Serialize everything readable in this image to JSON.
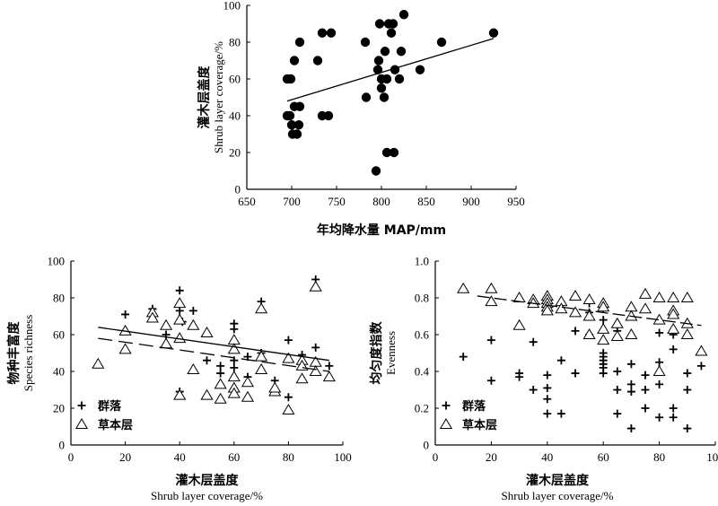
{
  "chart_data": [
    {
      "type": "scatter",
      "xlabel": "年均降水量 MAP/mm",
      "ylabel_cn": "灌木层盖度",
      "ylabel_en": "Shrub layer coverage/%",
      "xlim": [
        650,
        950
      ],
      "ylim": [
        0,
        100
      ],
      "xticks": [
        650,
        700,
        750,
        800,
        850,
        900,
        950
      ],
      "yticks": [
        0,
        20,
        40,
        60,
        80,
        100
      ],
      "series": [
        {
          "marker": "filled-circle",
          "points": [
            [
              695,
              60
            ],
            [
              699,
              60
            ],
            [
              703,
              70
            ],
            [
              709,
              80
            ],
            [
              729,
              70
            ],
            [
              734,
              85
            ],
            [
              744,
              85
            ],
            [
              695,
              40
            ],
            [
              698,
              40
            ],
            [
              700,
              35
            ],
            [
              703,
              45
            ],
            [
              709,
              45
            ],
            [
              701,
              30
            ],
            [
              706,
              30
            ],
            [
              708,
              35
            ],
            [
              734,
              40
            ],
            [
              741,
              40
            ],
            [
              782,
              80
            ],
            [
              783,
              50
            ],
            [
              794,
              10
            ],
            [
              796,
              65
            ],
            [
              798,
              90
            ],
            [
              797,
              70
            ],
            [
              800,
              55
            ],
            [
              803,
              50
            ],
            [
              804,
              75
            ],
            [
              806,
              60
            ],
            [
              808,
              90
            ],
            [
              811,
              85
            ],
            [
              813,
              90
            ],
            [
              806,
              20
            ],
            [
              814,
              20
            ],
            [
              815,
              65
            ],
            [
              820,
              60
            ],
            [
              822,
              75
            ],
            [
              825,
              95
            ],
            [
              843,
              65
            ],
            [
              867,
              80
            ],
            [
              925,
              85
            ],
            [
              800,
              60
            ]
          ]
        }
      ],
      "trendline": [
        [
          695,
          48
        ],
        [
          925,
          82
        ]
      ]
    },
    {
      "type": "scatter",
      "xlabel_cn": "灌木层盖度",
      "xlabel_en": "Shrub layer coverage/%",
      "ylabel_cn": "物种丰富度",
      "ylabel_en": "Species richness",
      "xlim": [
        0,
        100
      ],
      "ylim": [
        0,
        100
      ],
      "xticks": [
        0,
        20,
        40,
        60,
        80,
        100
      ],
      "yticks": [
        0,
        20,
        40,
        60,
        80,
        100
      ],
      "series": [
        {
          "name": "群落",
          "marker": "plus",
          "points": [
            [
              20,
              71
            ],
            [
              30,
              74
            ],
            [
              35,
              60
            ],
            [
              40,
              84
            ],
            [
              40,
              73
            ],
            [
              41,
              67
            ],
            [
              45,
              73
            ],
            [
              40,
              29
            ],
            [
              50,
              46
            ],
            [
              55,
              43
            ],
            [
              55,
              39
            ],
            [
              60,
              66
            ],
            [
              60,
              63
            ],
            [
              60,
              46
            ],
            [
              60,
              42
            ],
            [
              65,
              48
            ],
            [
              70,
              78
            ],
            [
              75,
              35
            ],
            [
              80,
              57
            ],
            [
              80,
              26
            ],
            [
              85,
              49
            ],
            [
              90,
              90
            ],
            [
              90,
              53
            ],
            [
              95,
              43
            ],
            [
              65,
              37
            ],
            [
              70,
              50
            ]
          ]
        },
        {
          "name": "草本层",
          "marker": "open-triangle",
          "points": [
            [
              10,
              44
            ],
            [
              20,
              62
            ],
            [
              20,
              52
            ],
            [
              30,
              72
            ],
            [
              30,
              69
            ],
            [
              35,
              65
            ],
            [
              35,
              55
            ],
            [
              40,
              77
            ],
            [
              40,
              68
            ],
            [
              40,
              58
            ],
            [
              40,
              27
            ],
            [
              45,
              65
            ],
            [
              45,
              41
            ],
            [
              50,
              61
            ],
            [
              50,
              27
            ],
            [
              55,
              33
            ],
            [
              55,
              25
            ],
            [
              60,
              57
            ],
            [
              60,
              52
            ],
            [
              60,
              37
            ],
            [
              60,
              31
            ],
            [
              60,
              28
            ],
            [
              65,
              34
            ],
            [
              65,
              26
            ],
            [
              70,
              74
            ],
            [
              70,
              48
            ],
            [
              70,
              41
            ],
            [
              75,
              29
            ],
            [
              75,
              31
            ],
            [
              80,
              19
            ],
            [
              80,
              47
            ],
            [
              85,
              46
            ],
            [
              85,
              43
            ],
            [
              85,
              36
            ],
            [
              90,
              86
            ],
            [
              90,
              45
            ],
            [
              90,
              40
            ],
            [
              95,
              37
            ]
          ]
        }
      ],
      "trendlines": [
        {
          "style": "solid",
          "points": [
            [
              10,
              64
            ],
            [
              95,
              46
            ]
          ]
        },
        {
          "style": "dashed",
          "points": [
            [
              10,
              58
            ],
            [
              95,
              40
            ]
          ]
        }
      ],
      "legend": [
        {
          "label": "群落",
          "marker": "plus"
        },
        {
          "label": "草本层",
          "marker": "open-triangle"
        }
      ],
      "legend_position": "bottom-left"
    },
    {
      "type": "scatter",
      "xlabel_cn": "灌木层盖度",
      "xlabel_en": "Shrub layer coverage/%",
      "ylabel_cn": "均匀度指数",
      "ylabel_en": "Evenness",
      "xlim": [
        0,
        100
      ],
      "ylim": [
        0,
        1.0
      ],
      "xticks": [
        0,
        20,
        40,
        60,
        80,
        100
      ],
      "yticks": [
        0.0,
        0.2,
        0.4,
        0.6,
        0.8,
        1.0
      ],
      "ytick_labels": [
        "0",
        "0.2",
        "0.4",
        "0.6",
        "0.8",
        "1.0"
      ],
      "series": [
        {
          "name": "群落",
          "marker": "plus",
          "points": [
            [
              10,
              0.48
            ],
            [
              20,
              0.57
            ],
            [
              20,
              0.35
            ],
            [
              30,
              0.39
            ],
            [
              30,
              0.37
            ],
            [
              35,
              0.56
            ],
            [
              35,
              0.3
            ],
            [
              40,
              0.38
            ],
            [
              40,
              0.31
            ],
            [
              40,
              0.25
            ],
            [
              40,
              0.17
            ],
            [
              45,
              0.46
            ],
            [
              45,
              0.17
            ],
            [
              50,
              0.62
            ],
            [
              50,
              0.39
            ],
            [
              55,
              0.77
            ],
            [
              55,
              0.6
            ],
            [
              60,
              0.74
            ],
            [
              60,
              0.68
            ],
            [
              60,
              0.5
            ],
            [
              60,
              0.48
            ],
            [
              60,
              0.46
            ],
            [
              60,
              0.44
            ],
            [
              60,
              0.42
            ],
            [
              60,
              0.39
            ],
            [
              65,
              0.4
            ],
            [
              65,
              0.3
            ],
            [
              65,
              0.17
            ],
            [
              70,
              0.44
            ],
            [
              70,
              0.33
            ],
            [
              70,
              0.29
            ],
            [
              70,
              0.09
            ],
            [
              75,
              0.38
            ],
            [
              75,
              0.3
            ],
            [
              75,
              0.2
            ],
            [
              80,
              0.61
            ],
            [
              80,
              0.45
            ],
            [
              80,
              0.33
            ],
            [
              80,
              0.15
            ],
            [
              85,
              0.6
            ],
            [
              85,
              0.52
            ],
            [
              85,
              0.2
            ],
            [
              85,
              0.15
            ],
            [
              90,
              0.39
            ],
            [
              90,
              0.3
            ],
            [
              90,
              0.09
            ],
            [
              95,
              0.43
            ],
            [
              55,
              0.72
            ],
            [
              65,
              0.62
            ]
          ]
        },
        {
          "name": "草本层",
          "marker": "open-triangle",
          "points": [
            [
              10,
              0.85
            ],
            [
              20,
              0.85
            ],
            [
              20,
              0.78
            ],
            [
              30,
              0.8
            ],
            [
              30,
              0.65
            ],
            [
              35,
              0.79
            ],
            [
              35,
              0.77
            ],
            [
              40,
              0.81
            ],
            [
              40,
              0.79
            ],
            [
              40,
              0.77
            ],
            [
              40,
              0.75
            ],
            [
              40,
              0.73
            ],
            [
              45,
              0.78
            ],
            [
              45,
              0.74
            ],
            [
              50,
              0.81
            ],
            [
              50,
              0.72
            ],
            [
              55,
              0.79
            ],
            [
              55,
              0.7
            ],
            [
              55,
              0.6
            ],
            [
              60,
              0.77
            ],
            [
              60,
              0.75
            ],
            [
              60,
              0.63
            ],
            [
              60,
              0.57
            ],
            [
              65,
              0.66
            ],
            [
              65,
              0.59
            ],
            [
              70,
              0.75
            ],
            [
              70,
              0.7
            ],
            [
              70,
              0.6
            ],
            [
              75,
              0.82
            ],
            [
              75,
              0.74
            ],
            [
              80,
              0.8
            ],
            [
              80,
              0.68
            ],
            [
              80,
              0.4
            ],
            [
              85,
              0.8
            ],
            [
              85,
              0.73
            ],
            [
              85,
              0.71
            ],
            [
              85,
              0.63
            ],
            [
              90,
              0.8
            ],
            [
              90,
              0.66
            ],
            [
              90,
              0.6
            ],
            [
              95,
              0.51
            ]
          ]
        }
      ],
      "trendline": [
        [
          15,
          0.81
        ],
        [
          95,
          0.65
        ]
      ],
      "legend": [
        {
          "label": "群落",
          "marker": "plus"
        },
        {
          "label": "草本层",
          "marker": "open-triangle"
        }
      ],
      "legend_position": "bottom-left"
    }
  ]
}
